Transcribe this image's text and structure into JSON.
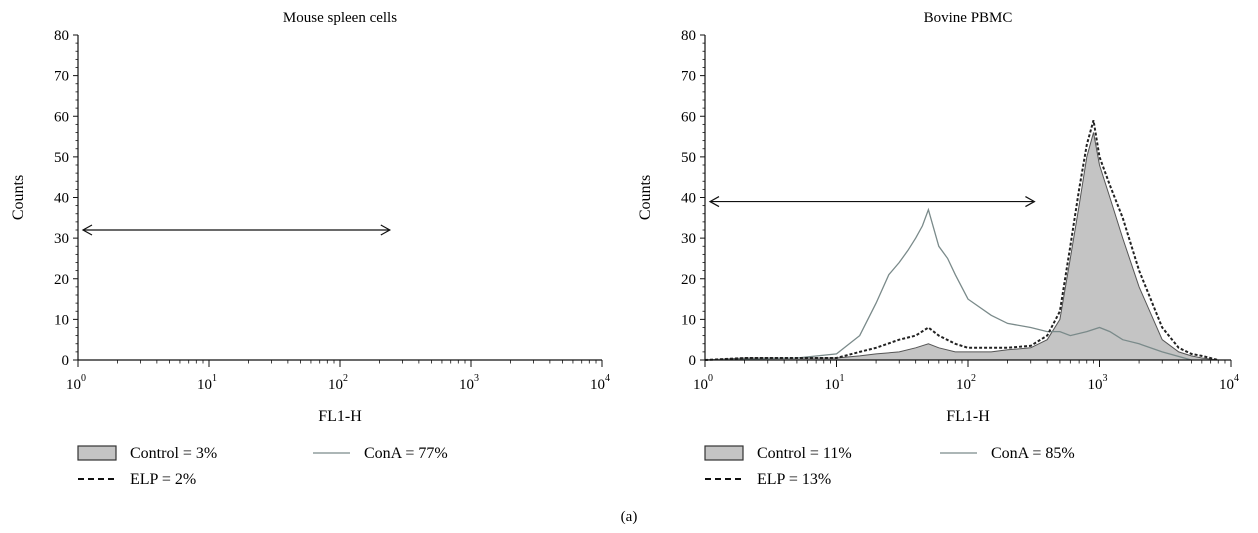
{
  "figure": {
    "panel_label": "(a)"
  },
  "chart_data": [
    {
      "type": "area",
      "title": "Mouse spleen cells",
      "xlabel": "FL1-H",
      "ylabel": "Counts",
      "xscale": "log",
      "xlim": [
        1,
        10000
      ],
      "ylim": [
        0,
        80
      ],
      "xtick_base": "10",
      "xtick_exponents": [
        "0",
        "1",
        "2",
        "3",
        "4"
      ],
      "yticks": [
        "0",
        "10",
        "20",
        "30",
        "40",
        "50",
        "60",
        "70",
        "80"
      ],
      "gate": {
        "x_start": 1,
        "x_end": 240,
        "y": 32
      },
      "legend": {
        "placement": "below-left",
        "entries": [
          {
            "label": "Control = 3%",
            "style": "filled-box"
          },
          {
            "label": "ConA = 77%",
            "style": "thin-line"
          },
          {
            "label": "ELP = 2%",
            "style": "dashed-line"
          }
        ]
      },
      "series": []
    },
    {
      "type": "area",
      "title": "Bovine PBMC",
      "xlabel": "FL1-H",
      "ylabel": "Counts",
      "xscale": "log",
      "xlim": [
        1,
        10000
      ],
      "ylim": [
        0,
        80
      ],
      "xtick_base": "10",
      "xtick_exponents": [
        "0",
        "1",
        "2",
        "3",
        "4"
      ],
      "yticks": [
        "0",
        "10",
        "20",
        "30",
        "40",
        "50",
        "60",
        "70",
        "80"
      ],
      "gate": {
        "x_start": 1,
        "x_end": 320,
        "y": 39
      },
      "legend": {
        "placement": "below-left",
        "entries": [
          {
            "label": "Control = 11%",
            "style": "filled-box"
          },
          {
            "label": "ConA = 85%",
            "style": "thin-line"
          },
          {
            "label": "ELP = 13%",
            "style": "dashed-line"
          }
        ]
      },
      "series": [
        {
          "role": "control",
          "color": "#c4c4c4",
          "x": [
            1,
            2,
            5,
            10,
            15,
            20,
            30,
            40,
            50,
            60,
            80,
            100,
            150,
            200,
            300,
            400,
            500,
            600,
            700,
            800,
            900,
            1000,
            1200,
            1500,
            2000,
            3000,
            4000,
            5000,
            6000,
            8000
          ],
          "y": [
            0,
            0.5,
            0.5,
            0.5,
            1,
            1.5,
            2,
            3,
            4,
            3,
            2,
            2,
            2,
            2.5,
            3,
            5,
            10,
            25,
            38,
            50,
            56,
            48,
            40,
            30,
            18,
            5,
            2,
            1,
            0.5,
            0
          ]
        },
        {
          "role": "conA",
          "color": "#7a8a8a",
          "x": [
            1,
            5,
            10,
            15,
            20,
            25,
            30,
            35,
            40,
            45,
            50,
            60,
            70,
            80,
            100,
            150,
            200,
            300,
            400,
            500,
            600,
            800,
            1000,
            1200,
            1500,
            2000,
            3000,
            5000
          ],
          "y": [
            0,
            0.5,
            1.5,
            6,
            14,
            21,
            24,
            27,
            30,
            33,
            37,
            28,
            25,
            21,
            15,
            11,
            9,
            8,
            7,
            7,
            6,
            7,
            8,
            7,
            5,
            4,
            2,
            0
          ]
        },
        {
          "role": "elp",
          "color": "#222222",
          "x": [
            1,
            2,
            5,
            10,
            15,
            20,
            30,
            40,
            50,
            60,
            80,
            100,
            150,
            200,
            300,
            400,
            500,
            600,
            700,
            800,
            900,
            1000,
            1200,
            1500,
            2000,
            3000,
            4000,
            5000,
            6000,
            8000
          ],
          "y": [
            0,
            0.5,
            0.5,
            0.5,
            2,
            3,
            5,
            6,
            8,
            6,
            4,
            3,
            3,
            3,
            3.5,
            6,
            12,
            28,
            42,
            53,
            59,
            50,
            43,
            35,
            22,
            8,
            3,
            1.5,
            1,
            0
          ]
        }
      ]
    }
  ]
}
